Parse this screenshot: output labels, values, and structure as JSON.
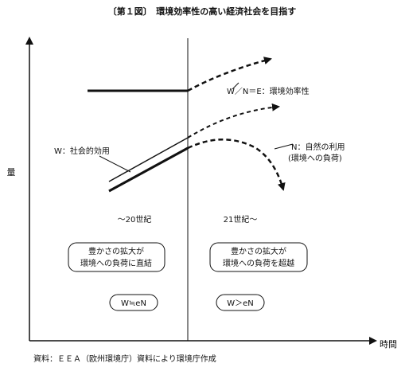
{
  "title": "〔第１図〕　環境効率性の高い経済社会を目指す",
  "axes": {
    "y_label": "量",
    "x_label": "時間"
  },
  "eras": {
    "left": "〜20世紀",
    "right": "21世紀〜"
  },
  "curves": {
    "efficiency": "W／N＝E：環境効率性",
    "welfare": "W：社会的効用",
    "nature_line1": "N：自然の利用",
    "nature_line2": "(環境への負荷)"
  },
  "boxes": {
    "left_line1": "豊かさの拡大が",
    "left_line2": "環境への負荷に直結",
    "right_line1": "豊かさの拡大が",
    "right_line2": "環境への負荷を超越"
  },
  "formulas": {
    "left": "W≒eN",
    "right": "W＞eN"
  },
  "source": "資料：ＥＥＡ（欧州環境庁）資料により環境庁作成"
}
